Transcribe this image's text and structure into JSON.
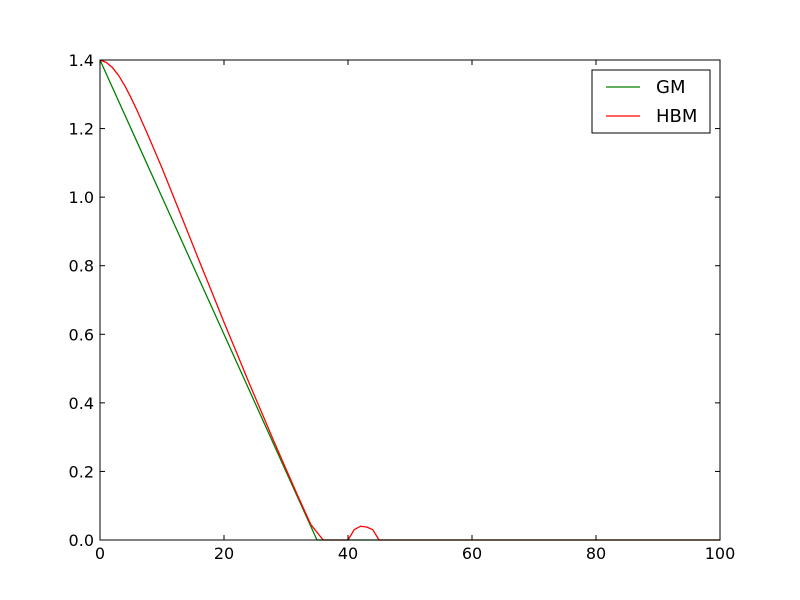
{
  "chart_data": {
    "type": "line",
    "xlim": [
      0,
      100
    ],
    "ylim": [
      0.0,
      1.4
    ],
    "x_ticks": [
      0,
      20,
      40,
      60,
      80,
      100
    ],
    "y_ticks": [
      0.0,
      0.2,
      0.4,
      0.6,
      0.8,
      1.0,
      1.2,
      1.4
    ],
    "x_tick_labels": [
      "0",
      "20",
      "40",
      "60",
      "80",
      "100"
    ],
    "y_tick_labels": [
      "0.0",
      "0.2",
      "0.4",
      "0.6",
      "0.8",
      "1.0",
      "1.2",
      "1.4"
    ],
    "grid": false,
    "legend_position": "top-right",
    "series": [
      {
        "name": "GM",
        "color": "#008000",
        "x": [
          0,
          5,
          10,
          15,
          20,
          25,
          30,
          33,
          35,
          36,
          40,
          50,
          60,
          70,
          80,
          90,
          100
        ],
        "y": [
          1.4,
          1.2,
          1.0,
          0.8,
          0.6,
          0.4,
          0.2,
          0.08,
          0.0,
          0.0,
          0.0,
          0.0,
          0.0,
          0.0,
          0.0,
          0.0,
          0.0
        ]
      },
      {
        "name": "HBM",
        "color": "#ff0000",
        "x": [
          0,
          1,
          2,
          3,
          4,
          5,
          6,
          8,
          10,
          12,
          14,
          16,
          18,
          20,
          22,
          24,
          26,
          28,
          30,
          32,
          34,
          36,
          37,
          38,
          39,
          40,
          40.5,
          41,
          42,
          43,
          44,
          45,
          46,
          50,
          60,
          70,
          80,
          90,
          100
        ],
        "y": [
          1.4,
          1.393,
          1.378,
          1.355,
          1.325,
          1.29,
          1.252,
          1.17,
          1.085,
          0.995,
          0.905,
          0.814,
          0.725,
          0.635,
          0.548,
          0.46,
          0.375,
          0.29,
          0.207,
          0.125,
          0.045,
          0.0,
          0.0,
          0.0,
          0.0,
          0.0,
          0.015,
          0.03,
          0.04,
          0.038,
          0.03,
          0.0,
          0.0,
          0.0,
          0.0,
          0.0,
          0.0,
          0.0,
          0.0
        ]
      }
    ]
  }
}
